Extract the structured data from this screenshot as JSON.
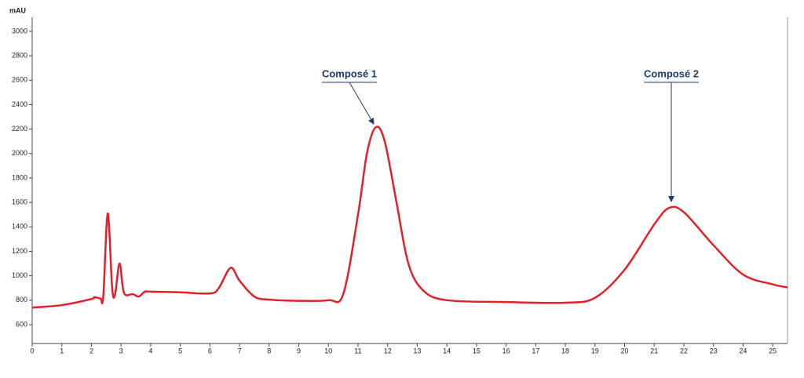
{
  "chart_data": {
    "type": "line",
    "y_label": "mAU",
    "x": [
      0,
      1,
      2,
      2.1,
      2.3,
      2.4,
      2.55,
      2.7,
      2.8,
      2.95,
      3.1,
      3.4,
      3.6,
      3.8,
      4,
      5,
      6,
      6.3,
      6.7,
      7.0,
      7.5,
      8,
      9,
      10,
      10.5,
      11,
      11.3,
      11.6,
      11.9,
      12.3,
      12.7,
      13.2,
      14,
      16,
      18,
      19,
      20,
      21,
      21.5,
      22,
      23,
      24,
      25,
      25.5
    ],
    "series": [
      {
        "color": "#e0202a",
        "values": [
          740,
          760,
          810,
          825,
          815,
          830,
          1510,
          900,
          850,
          1100,
          860,
          850,
          830,
          870,
          870,
          865,
          855,
          900,
          1065,
          960,
          830,
          805,
          795,
          800,
          850,
          1500,
          2000,
          2215,
          2100,
          1600,
          1100,
          880,
          800,
          785,
          780,
          820,
          1050,
          1420,
          1555,
          1520,
          1250,
          1010,
          930,
          905
        ]
      }
    ],
    "xlim": [
      0,
      25.5
    ],
    "xticks": [
      0,
      1,
      2,
      3,
      4,
      5,
      6,
      7,
      8,
      9,
      10,
      11,
      12,
      13,
      14,
      15,
      16,
      17,
      18,
      19,
      20,
      21,
      22,
      23,
      24,
      25
    ],
    "ylim": [
      446,
      3115
    ],
    "yticks": [
      600,
      800,
      1000,
      1200,
      1400,
      1600,
      1800,
      2000,
      2200,
      2400,
      2600,
      2800,
      3000
    ],
    "annotations": [
      {
        "text": "Composé 1"
      },
      {
        "text": "Composé 2"
      }
    ]
  }
}
